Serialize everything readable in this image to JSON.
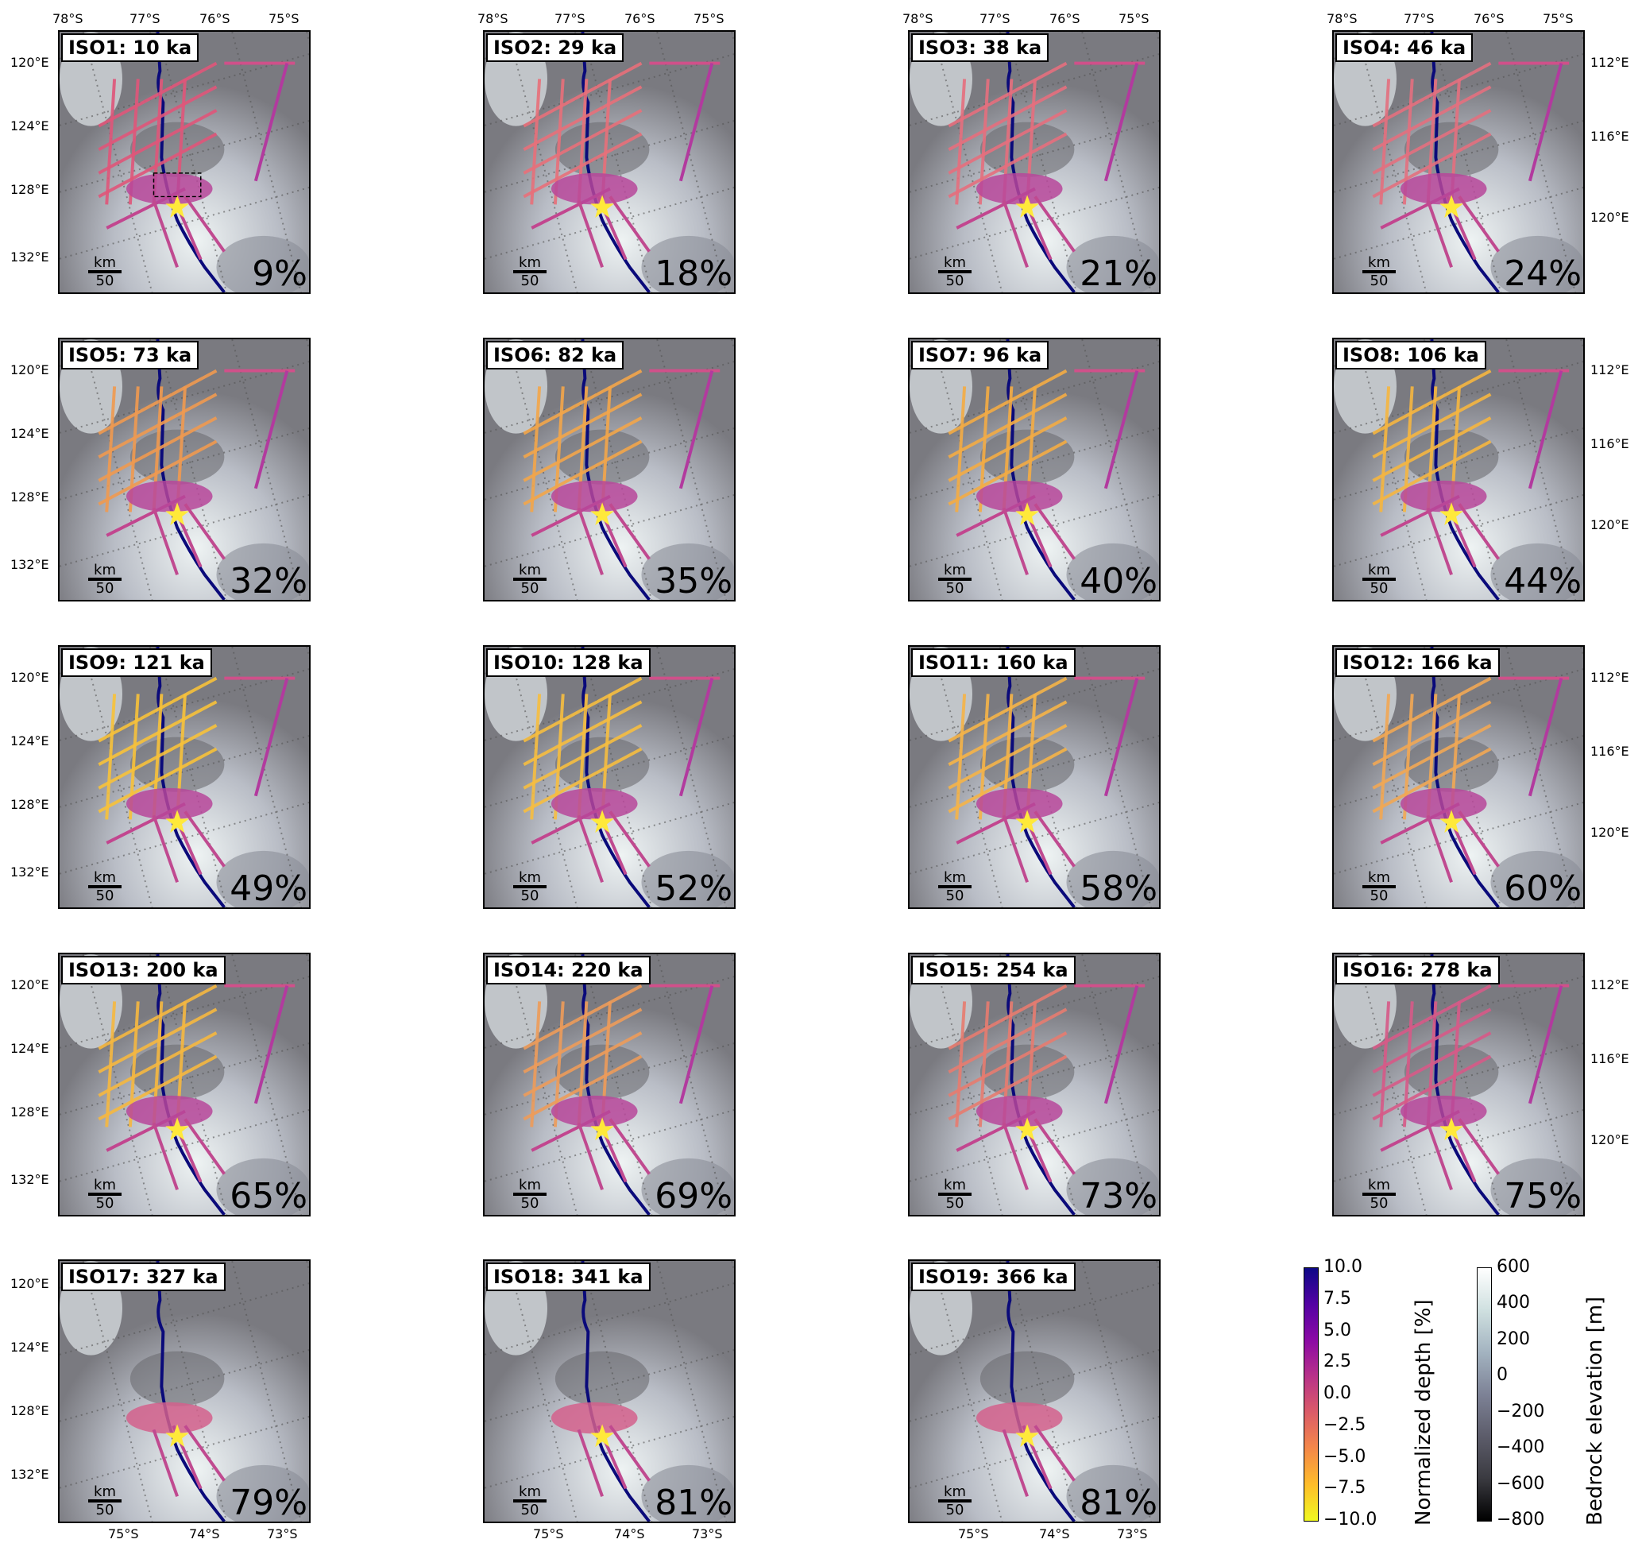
{
  "panels": [
    {
      "label": "ISO1: 10 ka",
      "pct": "9%",
      "dash_box": true,
      "color": "#e0567a",
      "faint": false
    },
    {
      "label": "ISO2: 29 ka",
      "pct": "18%",
      "color": "#e8707a"
    },
    {
      "label": "ISO3: 38 ka",
      "pct": "21%",
      "color": "#e66f7e"
    },
    {
      "label": "ISO4: 46 ka",
      "pct": "24%",
      "color": "#e4707f"
    },
    {
      "label": "ISO5: 73 ka",
      "pct": "32%",
      "color": "#f09a50"
    },
    {
      "label": "ISO6: 82 ka",
      "pct": "35%",
      "color": "#f3a64a"
    },
    {
      "label": "ISO7: 96 ka",
      "pct": "40%",
      "color": "#f4ac44"
    },
    {
      "label": "ISO8: 106 ka",
      "pct": "44%",
      "color": "#f6b640"
    },
    {
      "label": "ISO9: 121 ka",
      "pct": "49%",
      "color": "#f8c23a"
    },
    {
      "label": "ISO10: 128 ka",
      "pct": "52%",
      "color": "#f7be40"
    },
    {
      "label": "ISO11: 160 ka",
      "pct": "58%",
      "color": "#f6b448"
    },
    {
      "label": "ISO12: 166 ka",
      "pct": "60%",
      "color": "#f2a854"
    },
    {
      "label": "ISO13: 200 ka",
      "pct": "65%",
      "color": "#f6b840"
    },
    {
      "label": "ISO14: 220 ka",
      "pct": "69%",
      "color": "#ee9c5a"
    },
    {
      "label": "ISO15: 254 ka",
      "pct": "73%",
      "color": "#e77c70"
    },
    {
      "label": "ISO16: 278 ka",
      "pct": "75%",
      "color": "#d75a88"
    },
    {
      "label": "ISO17: 327 ka",
      "pct": "79%",
      "color": "#e0707a"
    },
    {
      "label": "ISO18: 341 ka",
      "pct": "81%",
      "color": "#e0707a"
    },
    {
      "label": "ISO19: 366 ka",
      "pct": "81%",
      "color": "#e0707a"
    }
  ],
  "scale": {
    "unit": "km",
    "value": "50"
  },
  "top_lat_ticks": [
    "78°S",
    "77°S",
    "76°S",
    "75°S"
  ],
  "bottom_lat_ticks": [
    "75°S",
    "74°S",
    "73°S"
  ],
  "left_lon_ticks": [
    "120°E",
    "124°E",
    "128°E",
    "132°E"
  ],
  "right_lon_ticks": [
    "112°E",
    "116°E",
    "120°E"
  ],
  "colorbar_depth": {
    "label": "Normalized depth [%]",
    "ticks": [
      "10.0",
      "7.5",
      "5.0",
      "2.5",
      "0.0",
      "−2.5",
      "−5.0",
      "−7.5",
      "−10.0"
    ],
    "range": [
      -10,
      10
    ],
    "colormap": "plasma_r"
  },
  "colorbar_bedrock": {
    "label": "Bedrock elevation [m]",
    "ticks": [
      "600",
      "400",
      "200",
      "0",
      "−200",
      "−400",
      "−600",
      "−800"
    ],
    "range": [
      -800,
      600
    ],
    "colormap": "bone"
  },
  "colors": {
    "river": "#0a0a7a",
    "star": "#ffe93a"
  }
}
